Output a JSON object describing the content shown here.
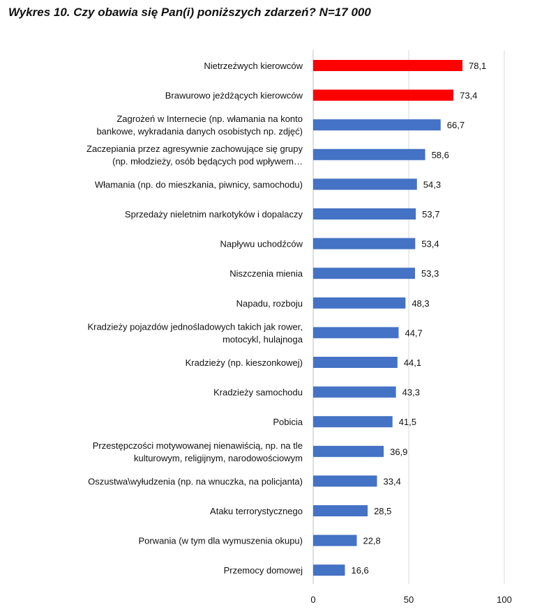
{
  "chart_data": {
    "type": "bar",
    "orientation": "horizontal",
    "title": "Wykres 10. Czy obawia się Pan(i) poniższych zdarzeń? N=17 000",
    "xlim": [
      0,
      100
    ],
    "x_ticks": [
      "0",
      "50",
      "100"
    ],
    "gridlines": "vertical",
    "legend": "none",
    "colors": {
      "highlight": "#ff0000",
      "default": "#4472c4"
    },
    "categories": [
      [
        "Nietrzeźwych kierowców"
      ],
      [
        "Brawurowo jeżdżących kierowców"
      ],
      [
        "Zagrożeń w Internecie (np. włamania na konto",
        "bankowe, wykradania danych osobistych np. zdjęć)"
      ],
      [
        "Zaczepiania przez agresywnie zachowujące się grupy",
        "(np. młodzieży, osób będących pod wpływem…"
      ],
      [
        "Włamania (np. do mieszkania, piwnicy, samochodu)"
      ],
      [
        "Sprzedaży nieletnim narkotyków i dopalaczy"
      ],
      [
        "Napływu uchodźców"
      ],
      [
        "Niszczenia mienia"
      ],
      [
        "Napadu, rozboju"
      ],
      [
        "Kradzieży pojazdów jednośladowych takich jak rower,",
        "motocykl, hulajnoga"
      ],
      [
        "Kradzieży (np. kieszonkowej)"
      ],
      [
        "Kradzieży samochodu"
      ],
      [
        "Pobicia"
      ],
      [
        "Przestępczości motywowanej nienawiścią, np. na tle",
        "kulturowym, religijnym, narodowościowym"
      ],
      [
        "Oszustwa\\wyłudzenia (np. na wnuczka, na policjanta)"
      ],
      [
        "Ataku terrorystycznego"
      ],
      [
        "Porwania (w tym dla wymuszenia okupu)"
      ],
      [
        "Przemocy domowej"
      ]
    ],
    "values": [
      78.1,
      73.4,
      66.7,
      58.6,
      54.3,
      53.7,
      53.4,
      53.3,
      48.3,
      44.7,
      44.1,
      43.3,
      41.5,
      36.9,
      33.4,
      28.5,
      22.8,
      16.6
    ],
    "value_labels": [
      "78,1",
      "73,4",
      "66,7",
      "58,6",
      "54,3",
      "53,7",
      "53,4",
      "53,3",
      "48,3",
      "44,7",
      "44,1",
      "43,3",
      "41,5",
      "36,9",
      "33,4",
      "28,5",
      "22,8",
      "16,6"
    ],
    "highlighted": [
      0,
      1
    ]
  }
}
